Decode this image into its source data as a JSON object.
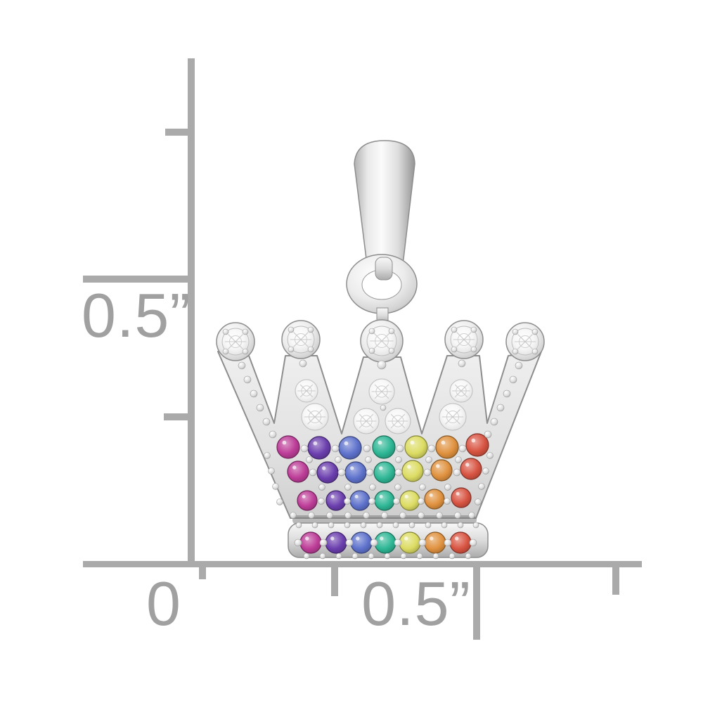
{
  "background_color": "#ffffff",
  "ruler": {
    "color": "#aaaaaa",
    "label_color": "#a0a0a0",
    "vertical_scale": {
      "label": "0.5”"
    },
    "horizontal_scale": {
      "zero_label": "0",
      "half_inch_label": "0.5”"
    }
  },
  "pendant": {
    "crown_points": 5,
    "metal": {
      "light": "#fbfbfb",
      "mid": "#dcdcdc",
      "dark": "#a0a0a0",
      "outline": "#8d8d8d"
    },
    "clear_stone_color": "#f5f5f5",
    "rainbow_sequence": [
      "magenta",
      "purple",
      "blue",
      "green",
      "yellow",
      "orange",
      "red"
    ],
    "stone_colors": {
      "magenta": "#bd3d98",
      "purple": "#6b3fae",
      "blue": "#5e72cc",
      "green": "#2eb795",
      "yellow": "#dcdc63",
      "orange": "#e0923f",
      "red": "#d85442"
    },
    "body_stone_rows": 3,
    "base_stone_rows": 1
  }
}
